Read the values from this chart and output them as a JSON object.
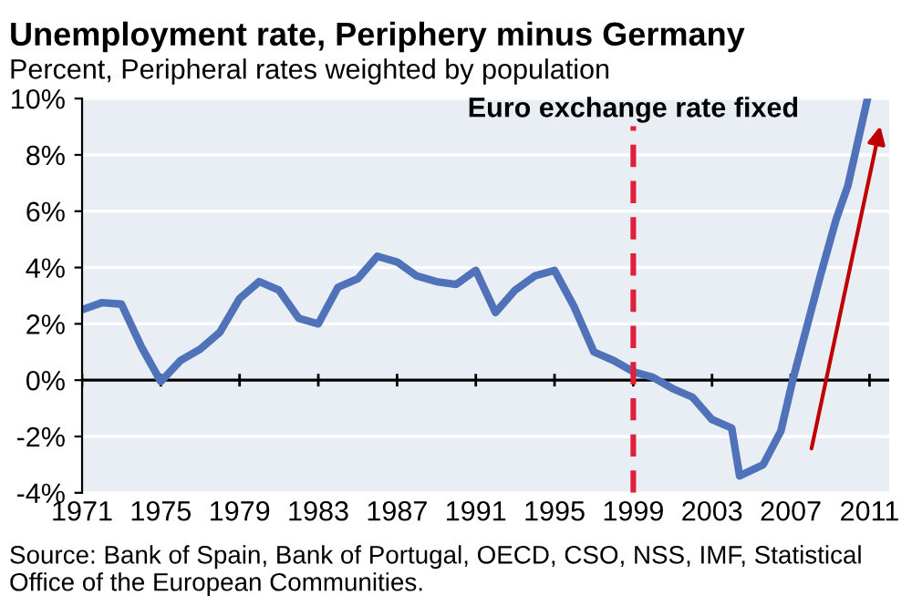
{
  "chart_data": {
    "type": "line",
    "title": "Unemployment rate, Periphery minus Germany",
    "subtitle": "Percent, Peripheral rates weighted by population",
    "x": [
      1971,
      1972,
      1973,
      1974,
      1975,
      1976,
      1977,
      1978,
      1979,
      1980,
      1981,
      1982,
      1983,
      1984,
      1985,
      1986,
      1987,
      1988,
      1989,
      1990,
      1991,
      1992,
      1993,
      1994,
      1995,
      1996,
      1997,
      1998,
      1999,
      2000,
      2001,
      2002,
      2003,
      2004,
      2004.4,
      2005.6,
      2006.5,
      2007.1,
      2008.5,
      2009.3,
      2009.5,
      2009.9,
      2010.9
    ],
    "series": [
      {
        "color": "#4f72b8",
        "values": [
          2.5,
          2.75,
          2.7,
          1.2,
          -0.05,
          0.7,
          1.1,
          1.7,
          2.9,
          3.5,
          3.2,
          2.2,
          2.0,
          3.3,
          3.6,
          4.4,
          4.2,
          3.7,
          3.5,
          3.4,
          3.9,
          2.4,
          3.2,
          3.7,
          3.9,
          2.6,
          1.0,
          0.7,
          0.3,
          0.1,
          -0.3,
          -0.6,
          -1.4,
          -1.7,
          -3.4,
          -3.0,
          -1.8,
          0.0,
          3.7,
          5.7,
          6.1,
          6.9,
          10.0
        ]
      }
    ],
    "xlim": [
      1971,
      2012
    ],
    "xticks": [
      1971,
      1975,
      1979,
      1983,
      1987,
      1991,
      1995,
      1999,
      2003,
      2007,
      2011
    ],
    "ylim": [
      -4,
      10
    ],
    "yticks": [
      {
        "value": -4,
        "label": "-4%"
      },
      {
        "value": -2,
        "label": "-2%"
      },
      {
        "value": 0,
        "label": "0%"
      },
      {
        "value": 2,
        "label": "2%"
      },
      {
        "value": 4,
        "label": "4%"
      },
      {
        "value": 6,
        "label": "6%"
      },
      {
        "value": 8,
        "label": "8%"
      },
      {
        "value": 10,
        "label": "10%"
      }
    ],
    "ref_lines": [
      {
        "axis": "x",
        "value": 1999,
        "label": "Euro exchange rate fixed",
        "color": "#e0203a",
        "line_style": "dashed"
      }
    ],
    "annotations": [
      "Source: Bank of Spain, Bank of Portugal, OECD, CSO, NSS, IMF, Statistical Office of the European Communities."
    ],
    "grid": "y"
  }
}
